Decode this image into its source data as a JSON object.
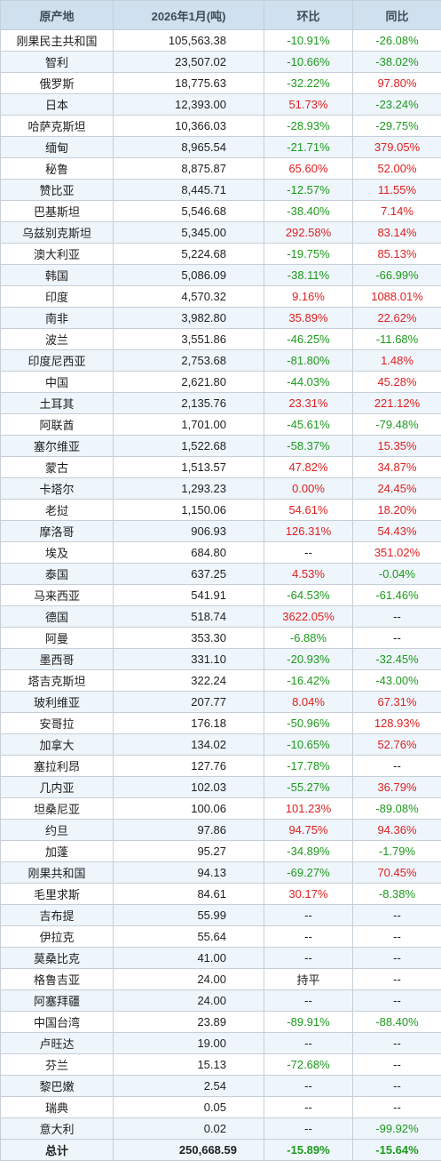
{
  "header": {
    "origin": "原产地",
    "volume": "2026年1月(吨)",
    "mom": "环比",
    "yoy": "同比"
  },
  "rows": [
    {
      "origin": "刚果民主共和国",
      "volume": "105,563.38",
      "mom": "-10.91%",
      "yoy": "-26.08%"
    },
    {
      "origin": "智利",
      "volume": "23,507.02",
      "mom": "-10.66%",
      "yoy": "-38.02%"
    },
    {
      "origin": "俄罗斯",
      "volume": "18,775.63",
      "mom": "-32.22%",
      "yoy": "97.80%"
    },
    {
      "origin": "日本",
      "volume": "12,393.00",
      "mom": "51.73%",
      "yoy": "-23.24%"
    },
    {
      "origin": "哈萨克斯坦",
      "volume": "10,366.03",
      "mom": "-28.93%",
      "yoy": "-29.75%"
    },
    {
      "origin": "缅甸",
      "volume": "8,965.54",
      "mom": "-21.71%",
      "yoy": "379.05%"
    },
    {
      "origin": "秘鲁",
      "volume": "8,875.87",
      "mom": "65.60%",
      "yoy": "52.00%"
    },
    {
      "origin": "赞比亚",
      "volume": "8,445.71",
      "mom": "-12.57%",
      "yoy": "11.55%"
    },
    {
      "origin": "巴基斯坦",
      "volume": "5,546.68",
      "mom": "-38.40%",
      "yoy": "7.14%"
    },
    {
      "origin": "乌兹别克斯坦",
      "volume": "5,345.00",
      "mom": "292.58%",
      "yoy": "83.14%"
    },
    {
      "origin": "澳大利亚",
      "volume": "5,224.68",
      "mom": "-19.75%",
      "yoy": "85.13%"
    },
    {
      "origin": "韩国",
      "volume": "5,086.09",
      "mom": "-38.11%",
      "yoy": "-66.99%"
    },
    {
      "origin": "印度",
      "volume": "4,570.32",
      "mom": "9.16%",
      "yoy": "1088.01%"
    },
    {
      "origin": "南非",
      "volume": "3,982.80",
      "mom": "35.89%",
      "yoy": "22.62%"
    },
    {
      "origin": "波兰",
      "volume": "3,551.86",
      "mom": "-46.25%",
      "yoy": "-11.68%"
    },
    {
      "origin": "印度尼西亚",
      "volume": "2,753.68",
      "mom": "-81.80%",
      "yoy": "1.48%"
    },
    {
      "origin": "中国",
      "volume": "2,621.80",
      "mom": "-44.03%",
      "yoy": "45.28%"
    },
    {
      "origin": "土耳其",
      "volume": "2,135.76",
      "mom": "23.31%",
      "yoy": "221.12%"
    },
    {
      "origin": "阿联酋",
      "volume": "1,701.00",
      "mom": "-45.61%",
      "yoy": "-79.48%"
    },
    {
      "origin": "塞尔维亚",
      "volume": "1,522.68",
      "mom": "-58.37%",
      "yoy": "15.35%"
    },
    {
      "origin": "蒙古",
      "volume": "1,513.57",
      "mom": "47.82%",
      "yoy": "34.87%"
    },
    {
      "origin": "卡塔尔",
      "volume": "1,293.23",
      "mom": "0.00%",
      "yoy": "24.45%"
    },
    {
      "origin": "老挝",
      "volume": "1,150.06",
      "mom": "54.61%",
      "yoy": "18.20%"
    },
    {
      "origin": "摩洛哥",
      "volume": "906.93",
      "mom": "126.31%",
      "yoy": "54.43%"
    },
    {
      "origin": "埃及",
      "volume": "684.80",
      "mom": "--",
      "yoy": "351.02%"
    },
    {
      "origin": "泰国",
      "volume": "637.25",
      "mom": "4.53%",
      "yoy": "-0.04%"
    },
    {
      "origin": "马来西亚",
      "volume": "541.91",
      "mom": "-64.53%",
      "yoy": "-61.46%"
    },
    {
      "origin": "德国",
      "volume": "518.74",
      "mom": "3622.05%",
      "yoy": "--"
    },
    {
      "origin": "阿曼",
      "volume": "353.30",
      "mom": "-6.88%",
      "yoy": "--"
    },
    {
      "origin": "墨西哥",
      "volume": "331.10",
      "mom": "-20.93%",
      "yoy": "-32.45%"
    },
    {
      "origin": "塔吉克斯坦",
      "volume": "322.24",
      "mom": "-16.42%",
      "yoy": "-43.00%"
    },
    {
      "origin": "玻利维亚",
      "volume": "207.77",
      "mom": "8.04%",
      "yoy": "67.31%"
    },
    {
      "origin": "安哥拉",
      "volume": "176.18",
      "mom": "-50.96%",
      "yoy": "128.93%"
    },
    {
      "origin": "加拿大",
      "volume": "134.02",
      "mom": "-10.65%",
      "yoy": "52.76%"
    },
    {
      "origin": "塞拉利昂",
      "volume": "127.76",
      "mom": "-17.78%",
      "yoy": "--"
    },
    {
      "origin": "几内亚",
      "volume": "102.03",
      "mom": "-55.27%",
      "yoy": "36.79%"
    },
    {
      "origin": "坦桑尼亚",
      "volume": "100.06",
      "mom": "101.23%",
      "yoy": "-89.08%"
    },
    {
      "origin": "约旦",
      "volume": "97.86",
      "mom": "94.75%",
      "yoy": "94.36%"
    },
    {
      "origin": "加蓬",
      "volume": "95.27",
      "mom": "-34.89%",
      "yoy": "-1.79%"
    },
    {
      "origin": "刚果共和国",
      "volume": "94.13",
      "mom": "-69.27%",
      "yoy": "70.45%"
    },
    {
      "origin": "毛里求斯",
      "volume": "84.61",
      "mom": "30.17%",
      "yoy": "-8.38%"
    },
    {
      "origin": "吉布提",
      "volume": "55.99",
      "mom": "--",
      "yoy": "--"
    },
    {
      "origin": "伊拉克",
      "volume": "55.64",
      "mom": "--",
      "yoy": "--"
    },
    {
      "origin": "莫桑比克",
      "volume": "41.00",
      "mom": "--",
      "yoy": "--"
    },
    {
      "origin": "格鲁吉亚",
      "volume": "24.00",
      "mom": "持平",
      "yoy": "--"
    },
    {
      "origin": "阿塞拜疆",
      "volume": "24.00",
      "mom": "--",
      "yoy": "--"
    },
    {
      "origin": "中国台湾",
      "volume": "23.89",
      "mom": "-89.91%",
      "yoy": "-88.40%"
    },
    {
      "origin": "卢旺达",
      "volume": "19.00",
      "mom": "--",
      "yoy": "--"
    },
    {
      "origin": "芬兰",
      "volume": "15.13",
      "mom": "-72.68%",
      "yoy": "--"
    },
    {
      "origin": "黎巴嫩",
      "volume": "2.54",
      "mom": "--",
      "yoy": "--"
    },
    {
      "origin": "瑞典",
      "volume": "0.05",
      "mom": "--",
      "yoy": "--"
    },
    {
      "origin": "意大利",
      "volume": "0.02",
      "mom": "--",
      "yoy": "-99.92%"
    }
  ],
  "total": {
    "origin": "总计",
    "volume": "250,668.59",
    "mom": "-15.89%",
    "yoy": "-15.64%"
  },
  "colors": {
    "header_bg": "#cfe0ee",
    "stripe_bg": "#eef5fb",
    "negative": "#1e9a1e",
    "positive": "#e01f1f",
    "border": "#c6cfd8"
  }
}
